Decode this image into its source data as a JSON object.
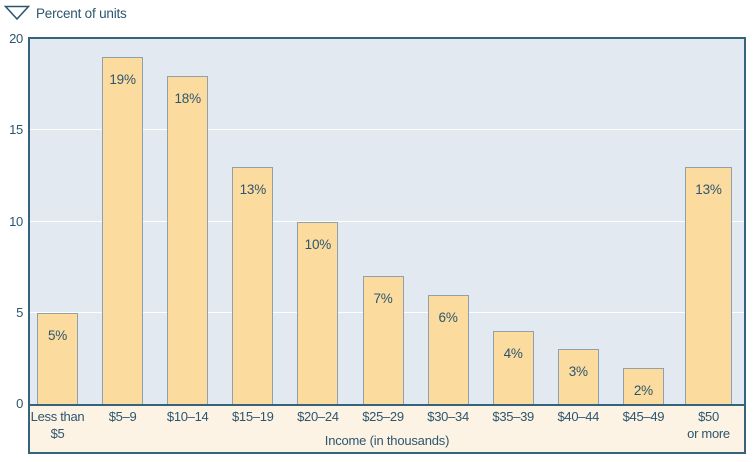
{
  "header": {
    "icon": "down-triangle-icon",
    "label": "Percent of units"
  },
  "chart_data": {
    "type": "bar",
    "title": "Percent of units",
    "xlabel": "Income (in thousands)",
    "ylabel": "Percent of units",
    "ylim": [
      0,
      20
    ],
    "yticks": [
      0,
      5,
      10,
      15,
      20
    ],
    "gridlines_at": [
      5,
      10,
      15
    ],
    "legend": "none",
    "categories": [
      "Less than\n$5",
      "$5–9",
      "$10–14",
      "$15–19",
      "$20–24",
      "$25–29",
      "$30–34",
      "$35–39",
      "$40–44",
      "$45–49",
      "$50\nor more"
    ],
    "values": [
      5,
      19,
      18,
      13,
      10,
      7,
      6,
      4,
      3,
      2,
      13
    ],
    "bar_labels": [
      "5%",
      "19%",
      "18%",
      "13%",
      "10%",
      "7%",
      "6%",
      "4%",
      "3%",
      "2%",
      "13%"
    ]
  },
  "colors": {
    "bar_fill": "#fbdb9e",
    "bar_border": "#90a0ac",
    "plot_bg": "#e3e9f0",
    "gridline": "#ffffff",
    "frame": "#35637c",
    "text": "#2d566e",
    "band_bg": "#fdf3e4",
    "page_bg": "#ffffff"
  }
}
